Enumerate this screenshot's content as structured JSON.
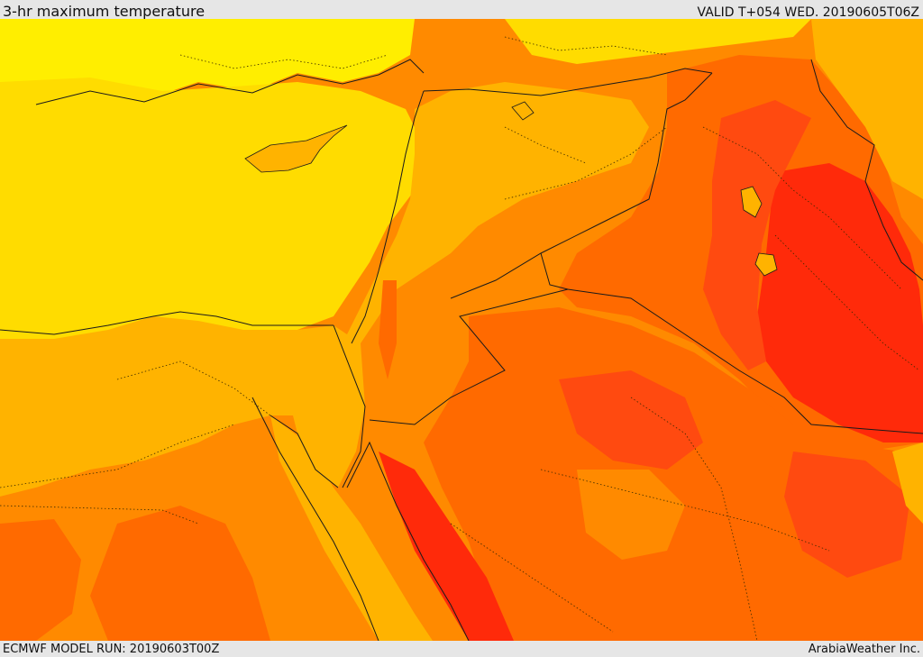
{
  "header": {
    "title": "3-hr maximum temperature",
    "valid": "VALID T+054 WED. 20190605T06Z"
  },
  "footer": {
    "model_run": "ECMWF MODEL RUN: 20190603T00Z",
    "credit": "ArabiaWeather Inc."
  },
  "map": {
    "region": "Eastern Mediterranean and Middle East",
    "palette": {
      "coolest": "#ffee00",
      "cool": "#ffdc00",
      "mild": "#ffb300",
      "warm": "#ff8a00",
      "hot": "#ff6a00",
      "hotter": "#ff4a10",
      "hottest": "#ff2a0a",
      "border": "#1a1a1a"
    }
  }
}
